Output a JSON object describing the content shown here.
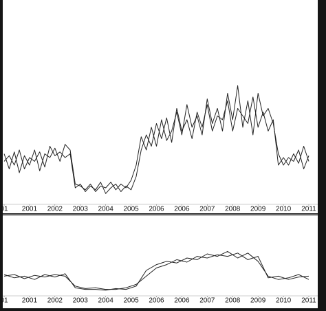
{
  "chart_data": [
    {
      "type": "line",
      "x": [
        0,
        0.2,
        0.4,
        0.6,
        0.8,
        1,
        1.2,
        1.4,
        1.6,
        1.8,
        2,
        2.2,
        2.4,
        2.6,
        2.8,
        3,
        3.2,
        3.4,
        3.6,
        3.8,
        4,
        4.2,
        4.4,
        4.6,
        4.8,
        5,
        5.2,
        5.4,
        5.6,
        5.8,
        6,
        6.2,
        6.4,
        6.6,
        6.8,
        7,
        7.2,
        7.4,
        7.6,
        7.8,
        8,
        8.2,
        8.4,
        8.6,
        8.8,
        9,
        9.2,
        9.4,
        9.6,
        9.8,
        10,
        10.2,
        10.4,
        10.6,
        10.8,
        11,
        11.2,
        11.4,
        11.6,
        11.8,
        12
      ],
      "series": [
        {
          "color": "#222222",
          "values": [
            26,
            18,
            27,
            16,
            25,
            20,
            28,
            17,
            26,
            24,
            29,
            22,
            31,
            28,
            10,
            9,
            7,
            10,
            6,
            9,
            8,
            11,
            7,
            10,
            8,
            12,
            20,
            35,
            28,
            40,
            30,
            44,
            33,
            38,
            48,
            36,
            52,
            40,
            46,
            36,
            55,
            42,
            50,
            38,
            58,
            44,
            62,
            40,
            54,
            36,
            58,
            46,
            50,
            42,
            26,
            20,
            24,
            22,
            28,
            18,
            25
          ]
        },
        {
          "color": "#222222",
          "values": [
            22,
            25,
            20,
            28,
            18,
            24,
            22,
            27,
            19,
            30,
            25,
            27,
            24,
            26,
            8,
            10,
            6,
            9,
            7,
            11,
            5,
            8,
            10,
            6,
            9,
            7,
            14,
            28,
            36,
            30,
            42,
            34,
            45,
            32,
            50,
            38,
            44,
            34,
            48,
            40,
            52,
            38,
            46,
            44,
            54,
            38,
            50,
            46,
            42,
            56,
            40,
            48,
            38,
            44,
            20,
            24,
            20,
            26,
            21,
            30,
            22
          ]
        }
      ],
      "xlim": [
        0,
        12
      ],
      "xticks": [
        {
          "value": 0,
          "label": "01"
        },
        {
          "value": 1,
          "label": "2001"
        },
        {
          "value": 2,
          "label": "2002"
        },
        {
          "value": 3,
          "label": "2003"
        },
        {
          "value": 4,
          "label": "2004"
        },
        {
          "value": 5,
          "label": "2005"
        },
        {
          "value": 6,
          "label": "2006"
        },
        {
          "value": 7,
          "label": "2006"
        },
        {
          "value": 8,
          "label": "2007"
        },
        {
          "value": 9,
          "label": "2008"
        },
        {
          "value": 10,
          "label": "2009"
        },
        {
          "value": 11,
          "label": "2010"
        },
        {
          "value": 12,
          "label": "2011"
        }
      ],
      "ylim": [
        0,
        100
      ]
    },
    {
      "type": "line",
      "x": [
        0,
        0.4,
        0.8,
        1.2,
        1.6,
        2,
        2.4,
        2.8,
        3.2,
        3.6,
        4,
        4.4,
        4.8,
        5.2,
        5.6,
        6,
        6.4,
        6.8,
        7.2,
        7.6,
        8,
        8.4,
        8.8,
        9.2,
        9.6,
        10,
        10.4,
        10.8,
        11.2,
        11.6,
        12
      ],
      "series": [
        {
          "color": "#222222",
          "values": [
            30,
            26,
            28,
            24,
            30,
            27,
            31,
            14,
            12,
            12,
            11,
            13,
            12,
            16,
            35,
            42,
            46,
            44,
            50,
            48,
            55,
            52,
            58,
            50,
            56,
            46,
            28,
            24,
            26,
            30,
            24
          ]
        },
        {
          "color": "#222222",
          "values": [
            28,
            30,
            25,
            29,
            27,
            30,
            28,
            16,
            13,
            14,
            12,
            12,
            14,
            18,
            28,
            38,
            42,
            48,
            45,
            52,
            50,
            54,
            52,
            56,
            48,
            52,
            26,
            28,
            24,
            27,
            28
          ]
        }
      ],
      "xlim": [
        0,
        12
      ],
      "xticks": [
        {
          "value": 0,
          "label": "01"
        },
        {
          "value": 1,
          "label": "2001"
        },
        {
          "value": 2,
          "label": "2002"
        },
        {
          "value": 3,
          "label": "2003"
        },
        {
          "value": 4,
          "label": "2004"
        },
        {
          "value": 5,
          "label": "2005"
        },
        {
          "value": 6,
          "label": "2006"
        },
        {
          "value": 7,
          "label": "2006"
        },
        {
          "value": 8,
          "label": "2007"
        },
        {
          "value": 9,
          "label": "2008"
        },
        {
          "value": 10,
          "label": "2009"
        },
        {
          "value": 11,
          "label": "2010"
        },
        {
          "value": 12,
          "label": "2011"
        }
      ],
      "ylim": [
        0,
        100
      ]
    }
  ]
}
